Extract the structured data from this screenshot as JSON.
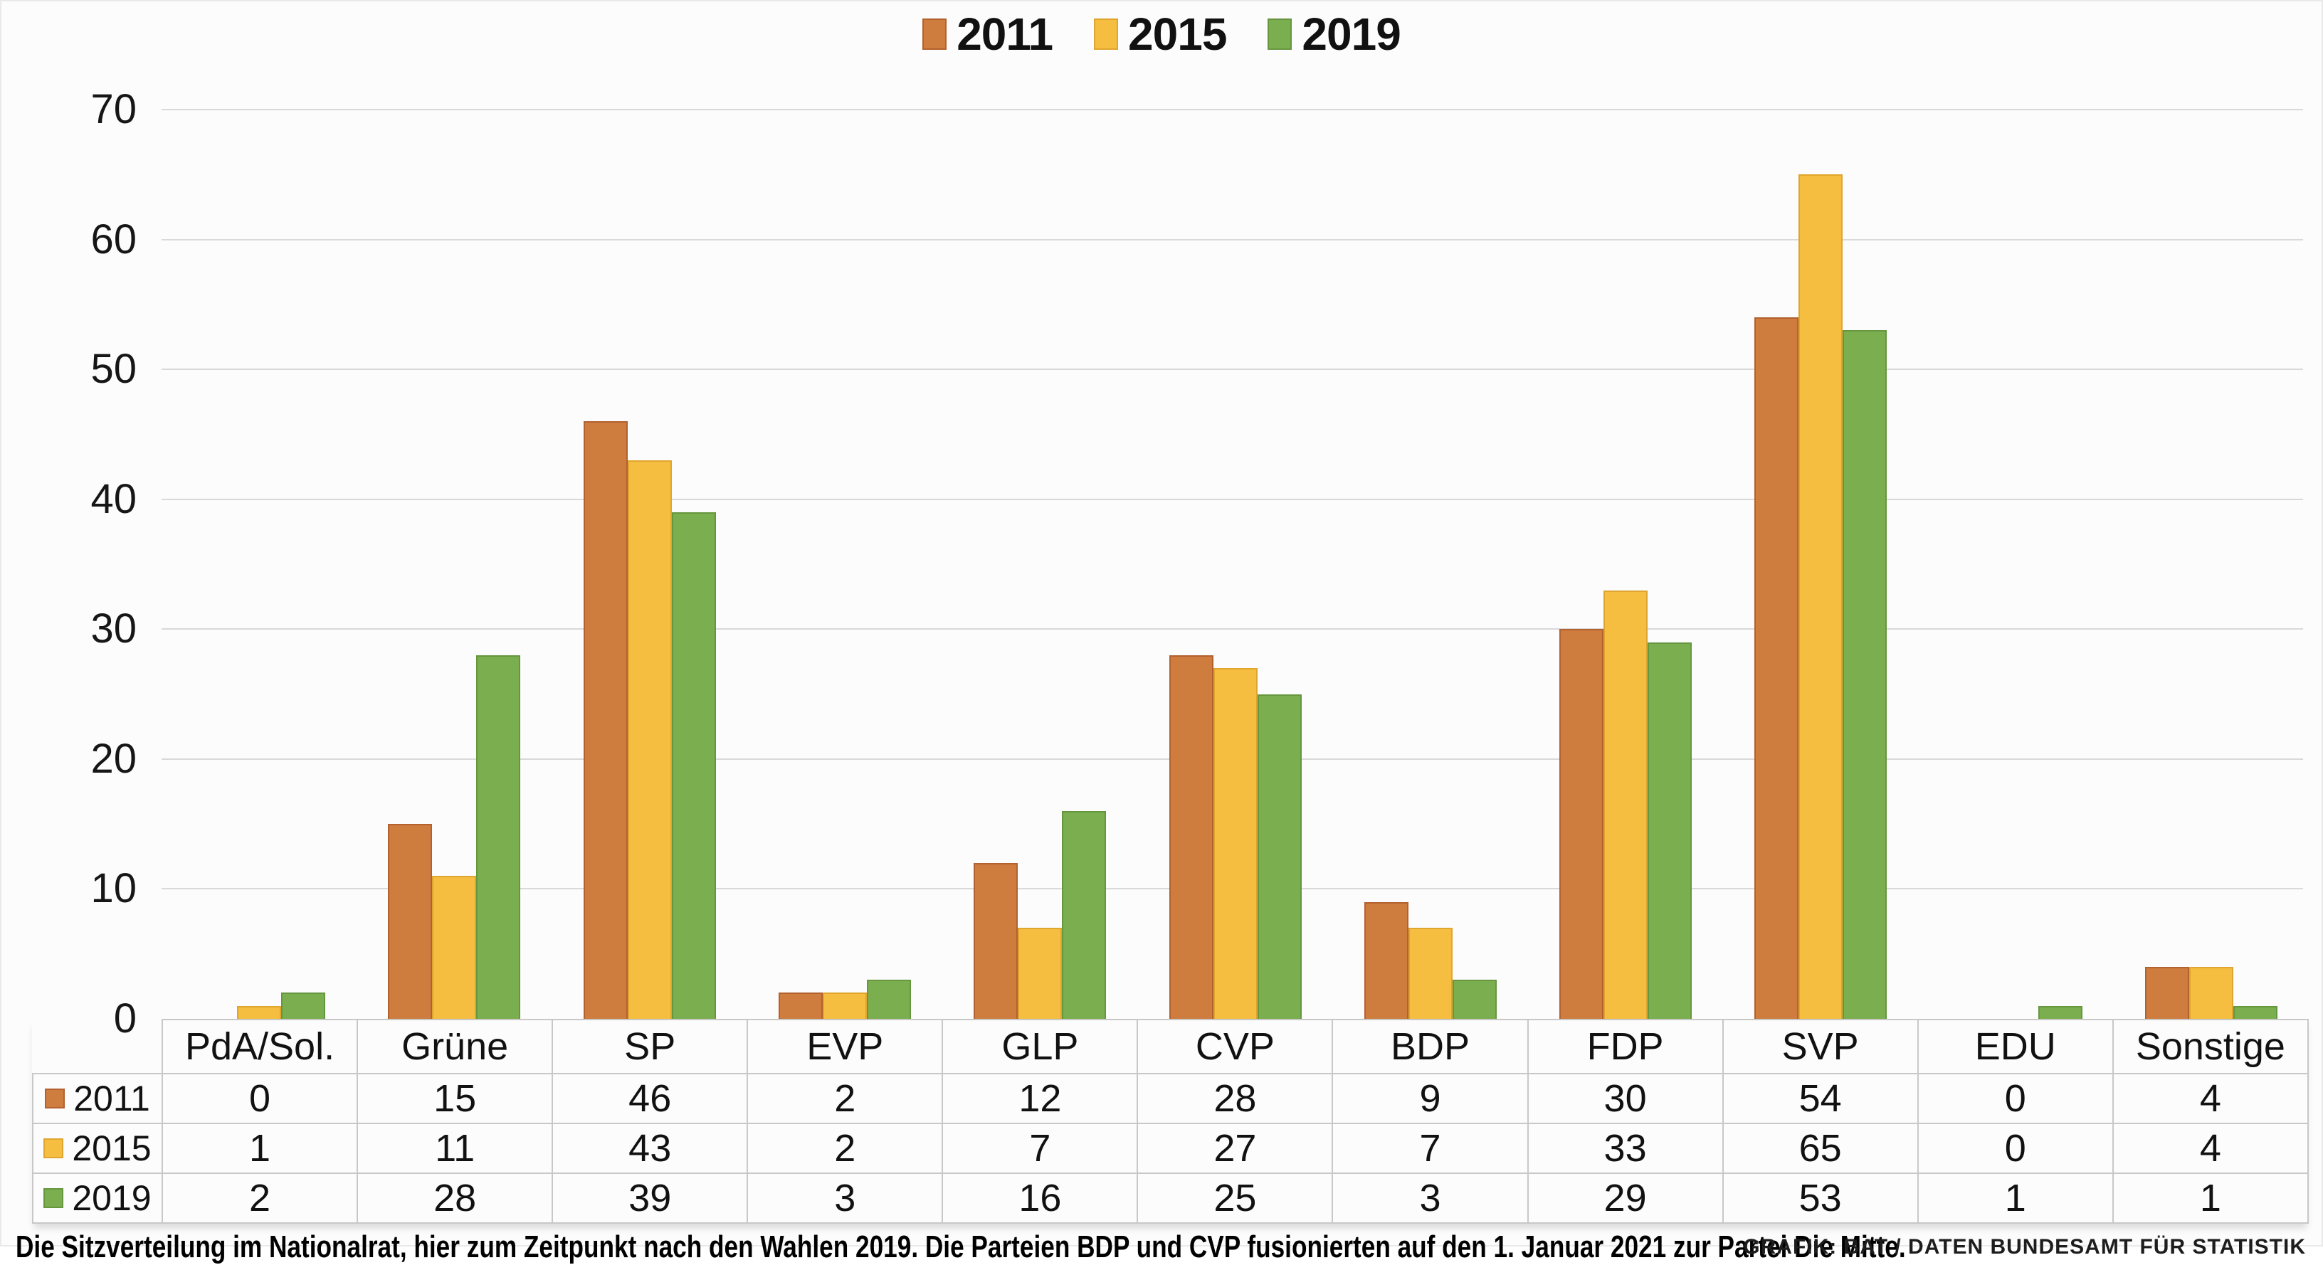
{
  "chart_data": {
    "type": "bar",
    "title": "",
    "xlabel": "",
    "ylabel": "",
    "categories": [
      "PdA/Sol.",
      "Grüne",
      "SP",
      "EVP",
      "GLP",
      "CVP",
      "BDP",
      "FDP",
      "SVP",
      "EDU",
      "Sonstige"
    ],
    "series": [
      {
        "name": "2011",
        "color": "#CE7D3F",
        "edge": "#B3612F",
        "values": [
          0,
          15,
          46,
          2,
          12,
          28,
          9,
          30,
          54,
          0,
          4
        ]
      },
      {
        "name": "2015",
        "color": "#F5BE41",
        "edge": "#E0A52E",
        "values": [
          1,
          11,
          43,
          2,
          7,
          27,
          7,
          33,
          65,
          0,
          4
        ]
      },
      {
        "name": "2019",
        "color": "#7AAE4E",
        "edge": "#66973F",
        "values": [
          2,
          28,
          39,
          3,
          16,
          25,
          3,
          29,
          53,
          1,
          1
        ]
      }
    ],
    "ylim": [
      0,
      70
    ],
    "yticks": [
      0,
      10,
      20,
      30,
      40,
      50,
      60,
      70
    ],
    "grid": "horizontal",
    "legend_position": "top-center",
    "data_table_shown": true
  },
  "caption": {
    "text": "Die Sitzverteilung im Nationalrat, hier zum Zeitpunkt nach den Wahlen 2019. Die Parteien BDP und CVP fusionierten auf den 1. Januar 2021 zur Partei Die Mitte."
  },
  "credit": {
    "text": "GRAFIK: BAT / DATEN BUNDESAMT FÜR STATISTIK"
  },
  "colors": {
    "background": "#FCFCFC",
    "gridline": "#D9D9D9",
    "table_border": "#C8C8C8",
    "text": "#111111",
    "series_2011": "#CE7D3F",
    "series_2015": "#F5BE41",
    "series_2019": "#7AAE4E"
  }
}
